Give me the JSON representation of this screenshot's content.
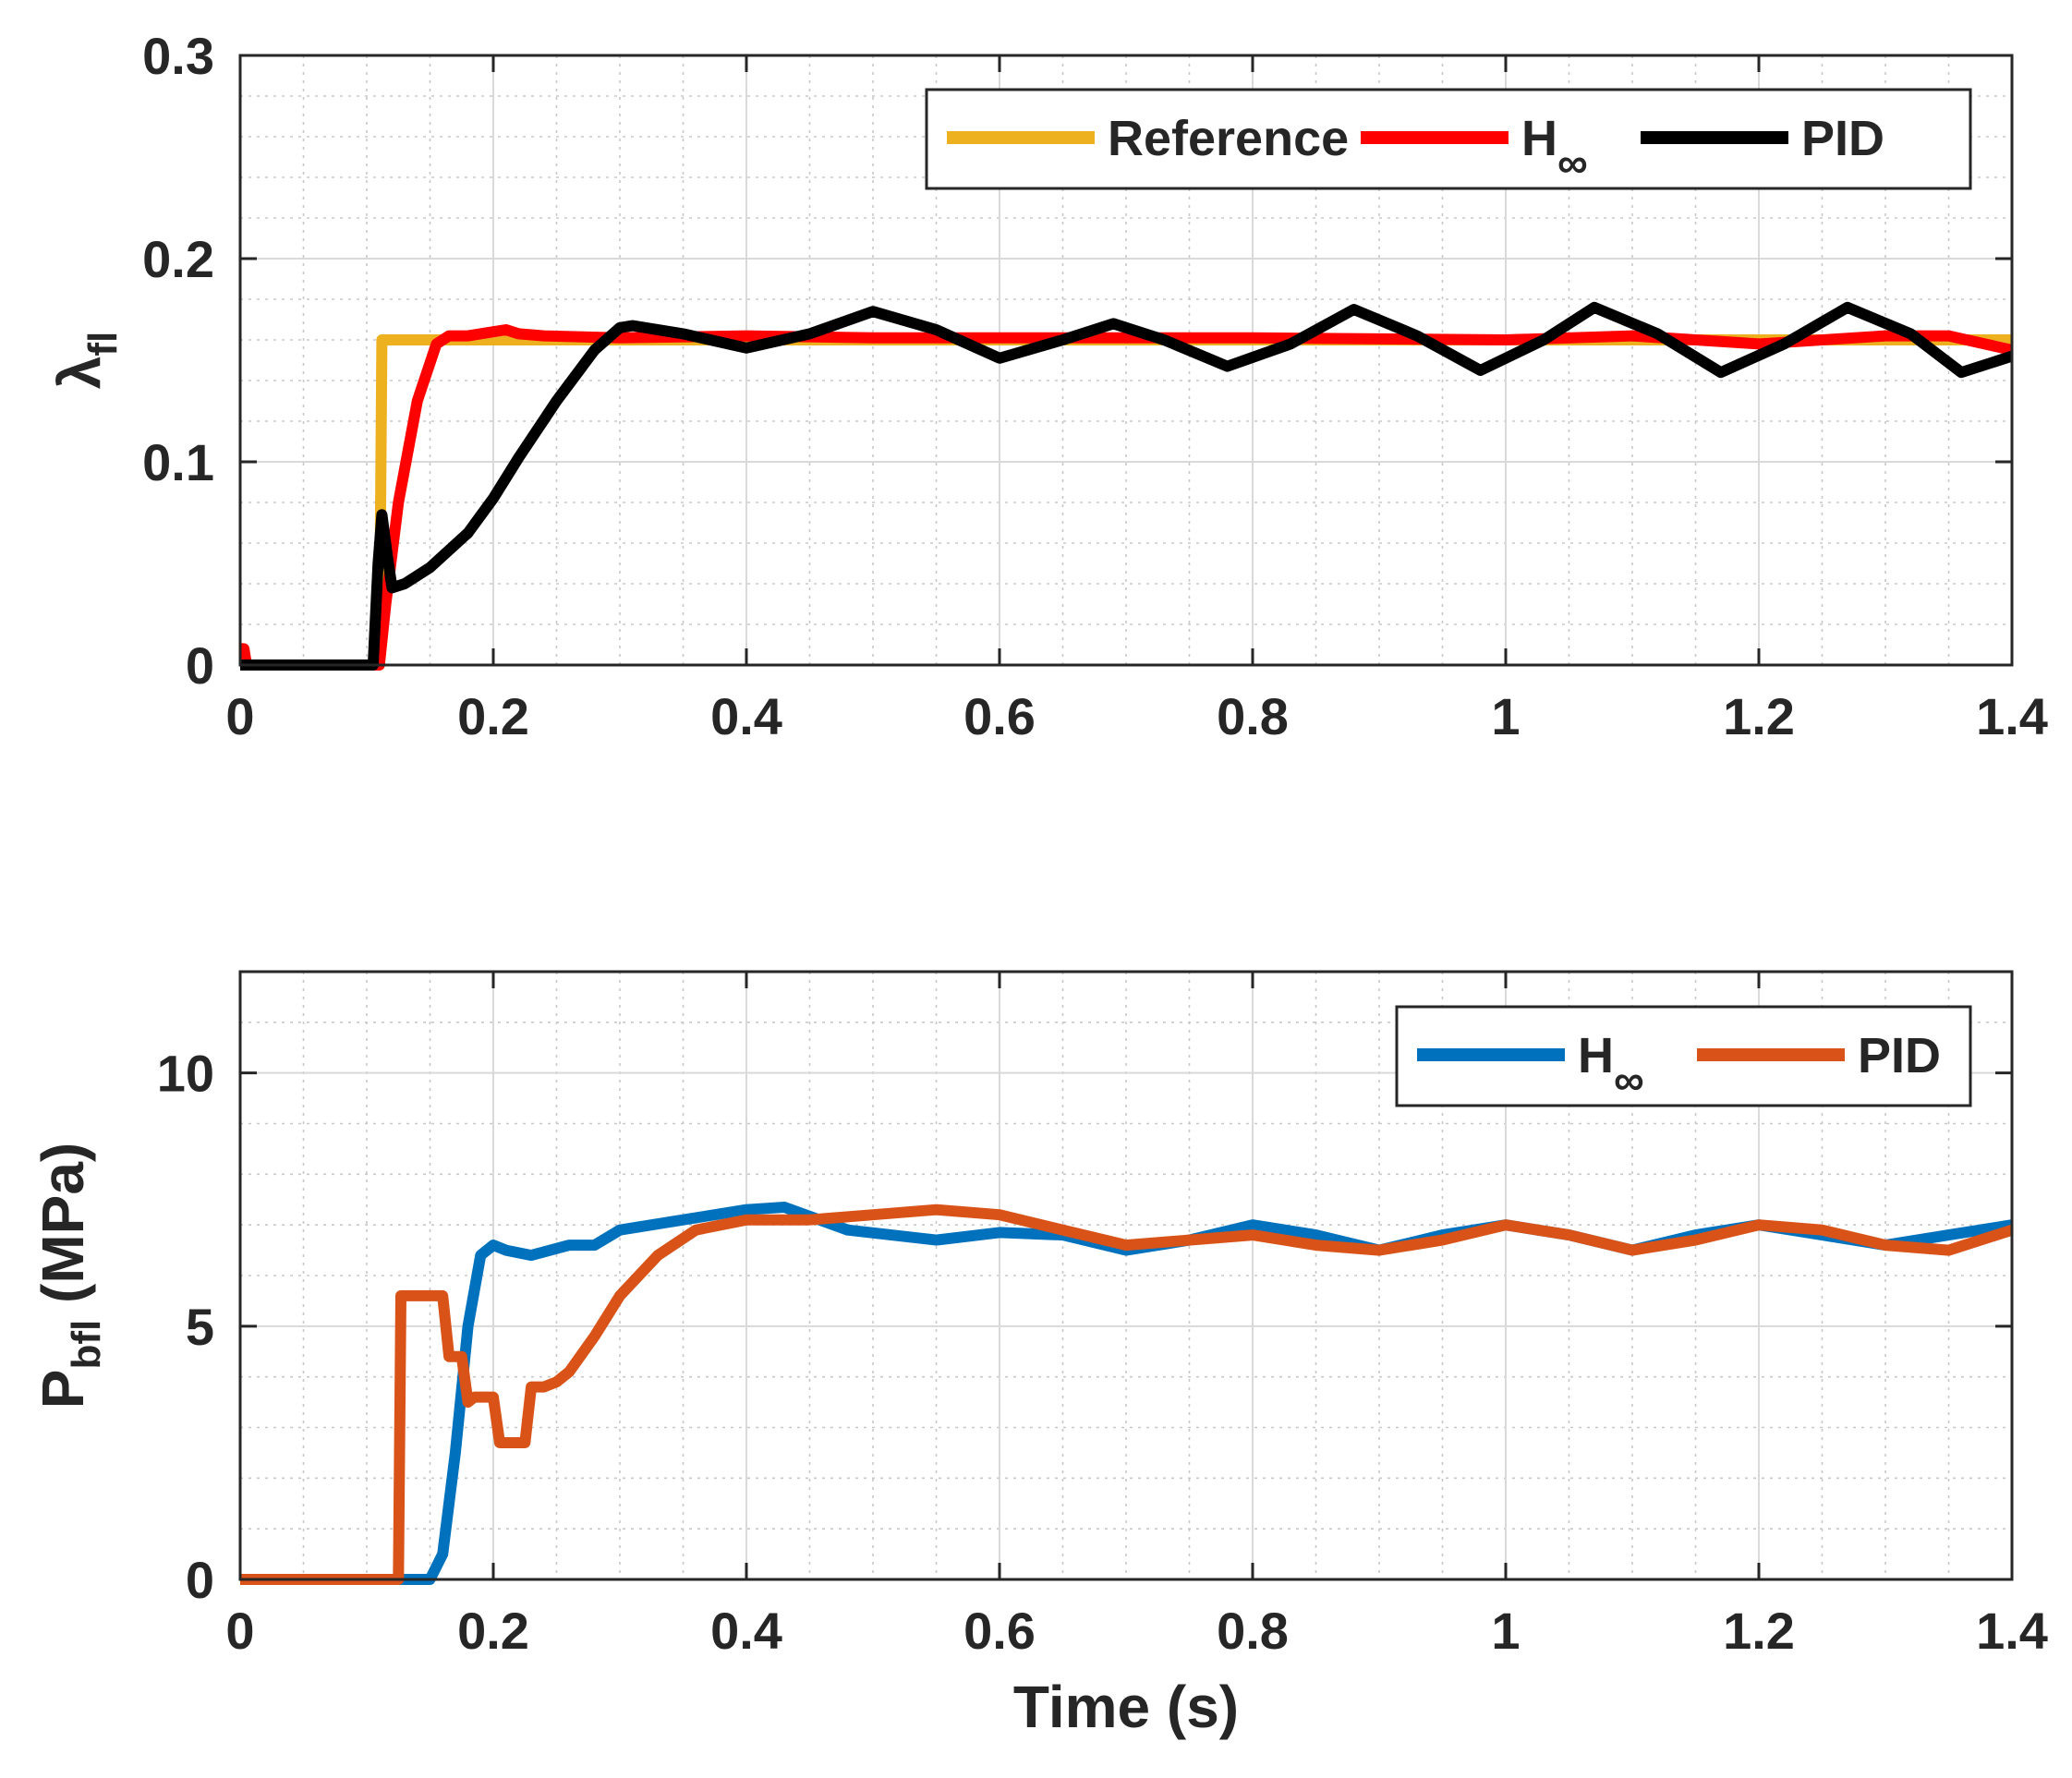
{
  "chart_data": [
    {
      "type": "line",
      "ylabel": "λ",
      "ylabel_subscript": "fl",
      "xlabel": "",
      "xlim": [
        0,
        1.4
      ],
      "ylim": [
        0,
        0.3
      ],
      "xticks": [
        0,
        0.2,
        0.4,
        0.6,
        0.8,
        1,
        1.2,
        1.4
      ],
      "xtick_labels": [
        "0",
        "0.2",
        "0.4",
        "0.6",
        "0.8",
        "1",
        "1.2",
        "1.4"
      ],
      "yticks": [
        0,
        0.1,
        0.2,
        0.3
      ],
      "ytick_labels": [
        "0",
        "0.1",
        "0.2",
        "0.3"
      ],
      "grid": true,
      "legend_position": "top-right",
      "series": [
        {
          "name": "Reference",
          "color": "#EDB120",
          "x": [
            0,
            0.11,
            0.112,
            1.4
          ],
          "y": [
            0,
            0,
            0.16,
            0.16
          ]
        },
        {
          "name": "H",
          "name_subscript": "∞",
          "color": "#FF0000",
          "x": [
            0,
            0.003,
            0.005,
            0.11,
            0.115,
            0.125,
            0.14,
            0.155,
            0.165,
            0.18,
            0.2,
            0.21,
            0.22,
            0.24,
            0.3,
            0.4,
            0.5,
            0.6,
            0.8,
            1.0,
            1.1,
            1.2,
            1.3,
            1.35,
            1.4
          ],
          "y": [
            0.008,
            0.008,
            0,
            0,
            0.03,
            0.08,
            0.13,
            0.158,
            0.162,
            0.162,
            0.164,
            0.165,
            0.163,
            0.162,
            0.161,
            0.162,
            0.161,
            0.161,
            0.161,
            0.16,
            0.162,
            0.158,
            0.162,
            0.162,
            0.155
          ]
        },
        {
          "name": "PID",
          "color": "#000000",
          "x": [
            0,
            0.105,
            0.109,
            0.112,
            0.116,
            0.12,
            0.13,
            0.15,
            0.18,
            0.2,
            0.22,
            0.25,
            0.28,
            0.3,
            0.31,
            0.35,
            0.4,
            0.45,
            0.5,
            0.55,
            0.6,
            0.65,
            0.69,
            0.73,
            0.78,
            0.83,
            0.88,
            0.93,
            0.98,
            1.03,
            1.07,
            1.12,
            1.17,
            1.22,
            1.27,
            1.32,
            1.36,
            1.4
          ],
          "y": [
            0,
            0,
            0.05,
            0.074,
            0.055,
            0.038,
            0.04,
            0.048,
            0.065,
            0.082,
            0.102,
            0.13,
            0.155,
            0.166,
            0.167,
            0.163,
            0.156,
            0.163,
            0.174,
            0.165,
            0.151,
            0.16,
            0.168,
            0.16,
            0.147,
            0.158,
            0.175,
            0.162,
            0.145,
            0.16,
            0.176,
            0.163,
            0.144,
            0.158,
            0.176,
            0.163,
            0.144,
            0.152
          ]
        }
      ]
    },
    {
      "type": "line",
      "ylabel": "P",
      "ylabel_subscript": "bfl",
      "ylabel_suffix": " (MPa)",
      "xlabel": "Time (s)",
      "xlim": [
        0,
        1.4
      ],
      "ylim": [
        0,
        12
      ],
      "xticks": [
        0,
        0.2,
        0.4,
        0.6,
        0.8,
        1,
        1.2,
        1.4
      ],
      "xtick_labels": [
        "0",
        "0.2",
        "0.4",
        "0.6",
        "0.8",
        "1",
        "1.2",
        "1.4"
      ],
      "yticks": [
        0,
        5,
        10
      ],
      "ytick_labels": [
        "0",
        "5",
        "10"
      ],
      "grid": true,
      "legend_position": "top-right",
      "series": [
        {
          "name": "H",
          "name_subscript": "∞",
          "color": "#0072BD",
          "x": [
            0,
            0.15,
            0.16,
            0.17,
            0.18,
            0.19,
            0.2,
            0.21,
            0.23,
            0.26,
            0.28,
            0.3,
            0.35,
            0.4,
            0.43,
            0.48,
            0.55,
            0.6,
            0.65,
            0.7,
            0.75,
            0.8,
            0.85,
            0.9,
            0.95,
            1.0,
            1.05,
            1.1,
            1.15,
            1.2,
            1.25,
            1.3,
            1.35,
            1.4
          ],
          "y": [
            0,
            0,
            0.5,
            2.5,
            5.0,
            6.4,
            6.6,
            6.5,
            6.4,
            6.6,
            6.6,
            6.9,
            7.1,
            7.3,
            7.35,
            6.9,
            6.7,
            6.85,
            6.8,
            6.5,
            6.7,
            7.0,
            6.8,
            6.5,
            6.8,
            7.0,
            6.8,
            6.5,
            6.8,
            7.0,
            6.8,
            6.6,
            6.8,
            7.0
          ]
        },
        {
          "name": "PID",
          "color": "#D95319",
          "x": [
            0,
            0.125,
            0.127,
            0.16,
            0.165,
            0.175,
            0.18,
            0.185,
            0.2,
            0.205,
            0.225,
            0.23,
            0.24,
            0.25,
            0.26,
            0.28,
            0.3,
            0.33,
            0.36,
            0.4,
            0.45,
            0.5,
            0.55,
            0.6,
            0.65,
            0.7,
            0.75,
            0.8,
            0.85,
            0.9,
            0.95,
            1.0,
            1.05,
            1.1,
            1.15,
            1.2,
            1.25,
            1.3,
            1.35,
            1.4
          ],
          "y": [
            0,
            0,
            5.6,
            5.6,
            4.4,
            4.4,
            3.5,
            3.6,
            3.6,
            2.7,
            2.7,
            3.8,
            3.8,
            3.9,
            4.1,
            4.8,
            5.6,
            6.4,
            6.9,
            7.1,
            7.1,
            7.2,
            7.3,
            7.2,
            6.9,
            6.6,
            6.7,
            6.8,
            6.6,
            6.5,
            6.7,
            7.0,
            6.8,
            6.5,
            6.7,
            7.0,
            6.9,
            6.6,
            6.5,
            6.9
          ]
        }
      ]
    }
  ]
}
